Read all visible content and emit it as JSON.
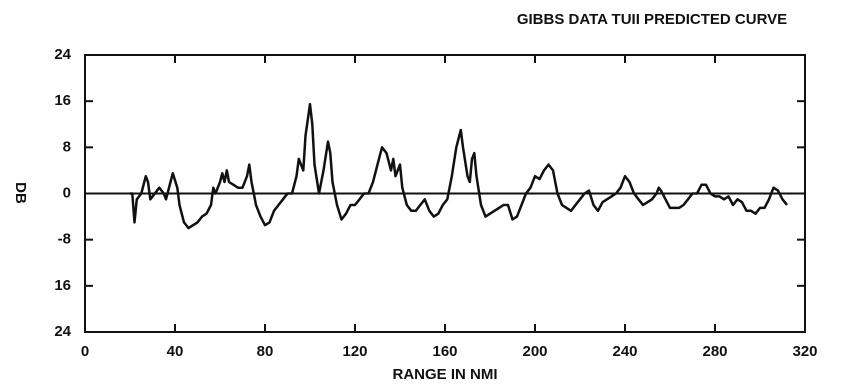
{
  "chart_data": {
    "type": "line",
    "title": "GIBBS DATA TUII PREDICTED CURVE",
    "xlabel": "RANGE IN NMI",
    "ylabel": "DB",
    "xlim": [
      0,
      320
    ],
    "ylim": [
      -24,
      24
    ],
    "xticks": [
      0,
      40,
      80,
      120,
      160,
      200,
      240,
      280,
      320
    ],
    "yticks": [
      24,
      16,
      8,
      0,
      -8,
      {
        "value": -16,
        "label": "16"
      },
      {
        "value": -24,
        "label": "24"
      }
    ],
    "zero_line": true,
    "color": "#111111",
    "x": [
      20,
      21,
      22,
      23,
      25,
      27,
      28,
      29,
      31,
      33,
      35,
      36,
      38,
      39,
      41,
      42,
      44,
      46,
      48,
      50,
      52,
      54,
      56,
      57,
      58,
      60,
      61,
      62,
      63,
      64,
      66,
      68,
      70,
      72,
      73,
      74,
      75,
      76,
      78,
      80,
      82,
      84,
      86,
      88,
      90,
      92,
      94,
      95,
      96,
      97,
      98,
      100,
      101,
      102,
      104,
      106,
      108,
      109,
      110,
      112,
      114,
      116,
      118,
      120,
      122,
      124,
      126,
      128,
      130,
      132,
      134,
      136,
      137,
      138,
      140,
      141,
      143,
      145,
      147,
      149,
      151,
      153,
      155,
      157,
      159,
      161,
      163,
      165,
      167,
      168,
      170,
      171,
      172,
      173,
      174,
      176,
      178,
      180,
      182,
      184,
      186,
      188,
      190,
      192,
      194,
      196,
      198,
      200,
      202,
      204,
      206,
      208,
      210,
      212,
      214,
      216,
      218,
      220,
      222,
      224,
      226,
      228,
      230,
      232,
      234,
      236,
      238,
      240,
      242,
      244,
      246,
      248,
      250,
      252,
      254,
      255,
      256,
      258,
      260,
      262,
      264,
      266,
      268,
      270,
      272,
      274,
      276,
      278,
      280,
      282,
      284,
      286,
      288,
      290,
      292,
      294,
      296,
      298,
      300,
      302,
      304,
      306,
      308,
      310,
      312
    ],
    "values": [
      0,
      0,
      -5,
      -1,
      0,
      3,
      2,
      -1,
      0,
      1,
      0,
      -1,
      2,
      3.5,
      1,
      -2,
      -5,
      -6,
      -5.5,
      -5,
      -4,
      -3.5,
      -2,
      1,
      0,
      2,
      3.5,
      2,
      4,
      2,
      1.5,
      1,
      1,
      3,
      5,
      2,
      0,
      -2,
      -4,
      -5.5,
      -5,
      -3,
      -2,
      -1,
      0,
      0,
      3,
      6,
      5,
      4,
      10,
      15.5,
      12,
      5,
      0,
      4,
      9,
      7,
      2,
      -2,
      -4.5,
      -3.5,
      -2,
      -2,
      -1,
      0,
      0,
      2,
      5,
      8,
      7,
      4,
      6,
      3,
      5,
      1,
      -2,
      -3,
      -3,
      -2,
      -1,
      -3,
      -4,
      -3.5,
      -2,
      -1,
      3,
      8,
      11,
      8,
      3,
      2,
      6,
      7,
      3,
      -2,
      -4,
      -3.5,
      -3,
      -2.5,
      -2,
      -2,
      -4.5,
      -4,
      -2,
      0,
      1,
      3,
      2.5,
      4,
      5,
      4,
      0,
      -2,
      -2.5,
      -3,
      -2,
      -1,
      0,
      0.5,
      -2,
      -3,
      -1.5,
      -1,
      -0.5,
      0,
      1,
      3,
      2,
      0,
      -1,
      -2,
      -1.5,
      -1,
      0,
      1,
      0.5,
      -1,
      -2.5,
      -2.5,
      -2.5,
      -2,
      -1,
      0,
      0,
      1.5,
      1.5,
      0,
      -0.5,
      -0.5,
      -1,
      -0.5,
      -2,
      -1,
      -1.5,
      -3,
      -3,
      -3.5,
      -2.5,
      -2.5,
      -1,
      1,
      0.5,
      -1,
      -2
    ]
  }
}
